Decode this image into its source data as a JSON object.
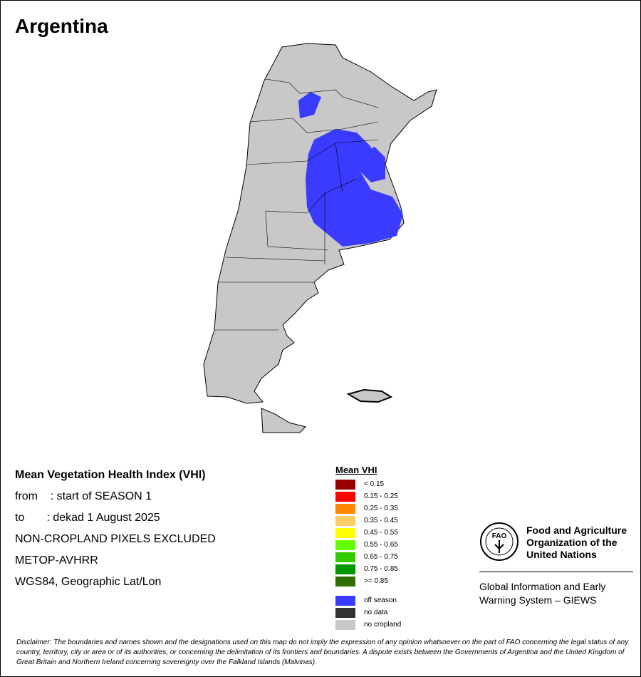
{
  "title": "Argentina",
  "info": {
    "heading": "Mean Vegetation Health Index (VHI)",
    "from": "from    : start of SEASON 1",
    "to": "to       : dekad 1 August 2025",
    "mask": "NON-CROPLAND PIXELS EXCLUDED",
    "sensor": "METOP-AVHRR",
    "projection": "WGS84, Geographic Lat/Lon"
  },
  "legend": {
    "title": "Mean VHI",
    "classes": [
      {
        "label": "< 0.15",
        "color": "#990000"
      },
      {
        "label": "0.15 - 0.25",
        "color": "#ff0000"
      },
      {
        "label": "0.25 - 0.35",
        "color": "#ff8800"
      },
      {
        "label": "0.35 - 0.45",
        "color": "#ffcc66"
      },
      {
        "label": "0.45 - 0.55",
        "color": "#ffff00"
      },
      {
        "label": "0.55 - 0.65",
        "color": "#66ff00"
      },
      {
        "label": "0.65 - 0.75",
        "color": "#33cc00"
      },
      {
        "label": "0.75 - 0.85",
        "color": "#009900"
      },
      {
        "label": ">= 0.85",
        "color": "#2d6e00"
      }
    ],
    "other": [
      {
        "label": "off season",
        "color": "#3b3bff"
      },
      {
        "label": "no data",
        "color": "#333333"
      },
      {
        "label": "no cropland",
        "color": "#c8c8c8"
      }
    ]
  },
  "org": {
    "logo_text": "FAO FIAT PANIS",
    "name": "Food and Agriculture Organization of the United Nations",
    "giews": "Global Information and Early Warning System – GIEWS"
  },
  "disclaimer": "Disclaimer: The boundaries and names shown and the designations used on this map do not imply the expression of any opinion whatsoever on the part of FAO concerning the legal status of any country, territory, city or area or of its authorities, or concerning the delimitation of its frontiers and boundaries. A dispute exists between the Governments of Argentina and the United Kingdom of Great Britain and Northern Ireland concerning sovereignty over the Falkland Islands (Malvinas)."
}
